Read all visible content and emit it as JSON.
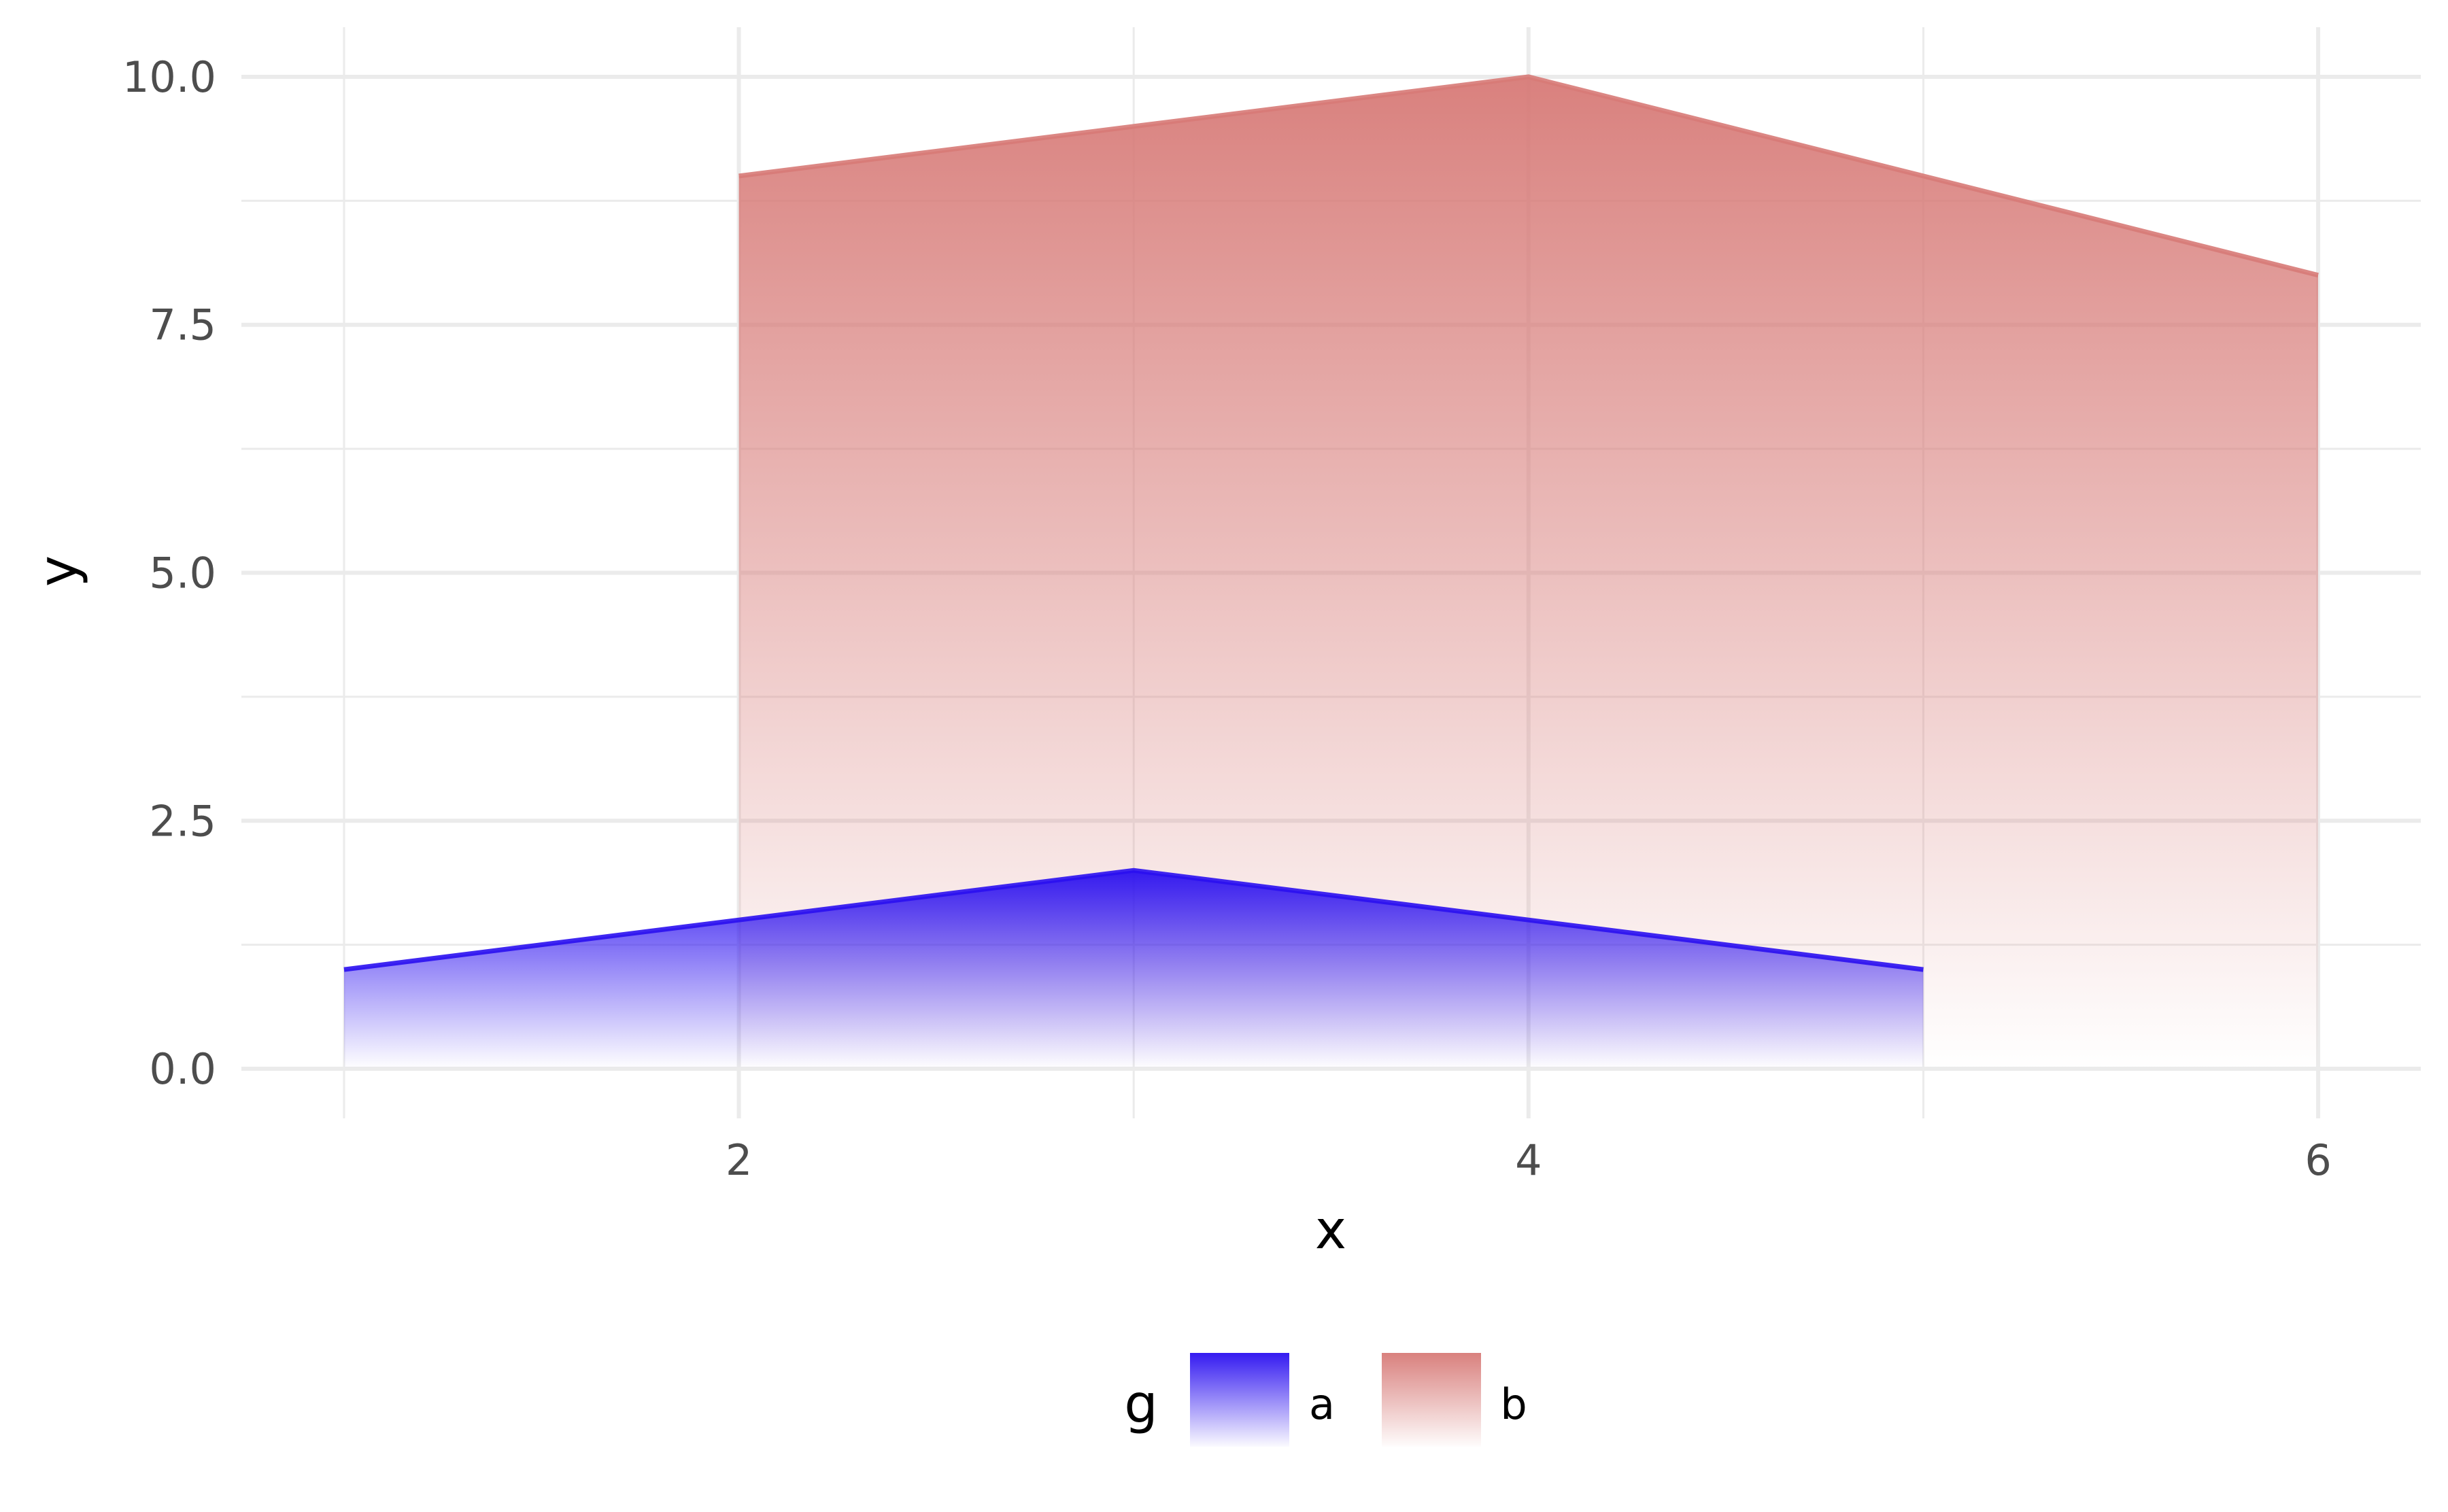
{
  "chart_data": {
    "type": "area",
    "xlabel": "x",
    "ylabel": "y",
    "xlim": [
      0.74,
      6.26
    ],
    "ylim": [
      -0.5,
      10.5
    ],
    "x_ticks": [
      2,
      4,
      6
    ],
    "x_tick_labels": [
      "2",
      "4",
      "6"
    ],
    "x_minor_ticks": [
      1,
      3,
      5
    ],
    "y_ticks": [
      0,
      2.5,
      5,
      7.5,
      10
    ],
    "y_tick_labels": [
      "0.0",
      "2.5",
      "5.0",
      "7.5",
      "10.0"
    ],
    "y_minor_ticks": [
      1.25,
      3.75,
      6.25,
      8.75
    ],
    "grid": true,
    "fill_style": "vertical gradient, fading to transparent toward 0",
    "series": [
      {
        "name": "a",
        "x": [
          1,
          2,
          3,
          4,
          5
        ],
        "y": [
          1,
          1.5,
          2,
          1.5,
          1
        ],
        "color": "#2a0ff0"
      },
      {
        "name": "b",
        "x": [
          2,
          3,
          4,
          5,
          6
        ],
        "y": [
          9,
          9.5,
          10,
          9,
          8
        ],
        "color": "#d77a77"
      }
    ],
    "legend": {
      "title": "g",
      "position": "bottom",
      "entries": [
        "a",
        "b"
      ]
    }
  }
}
